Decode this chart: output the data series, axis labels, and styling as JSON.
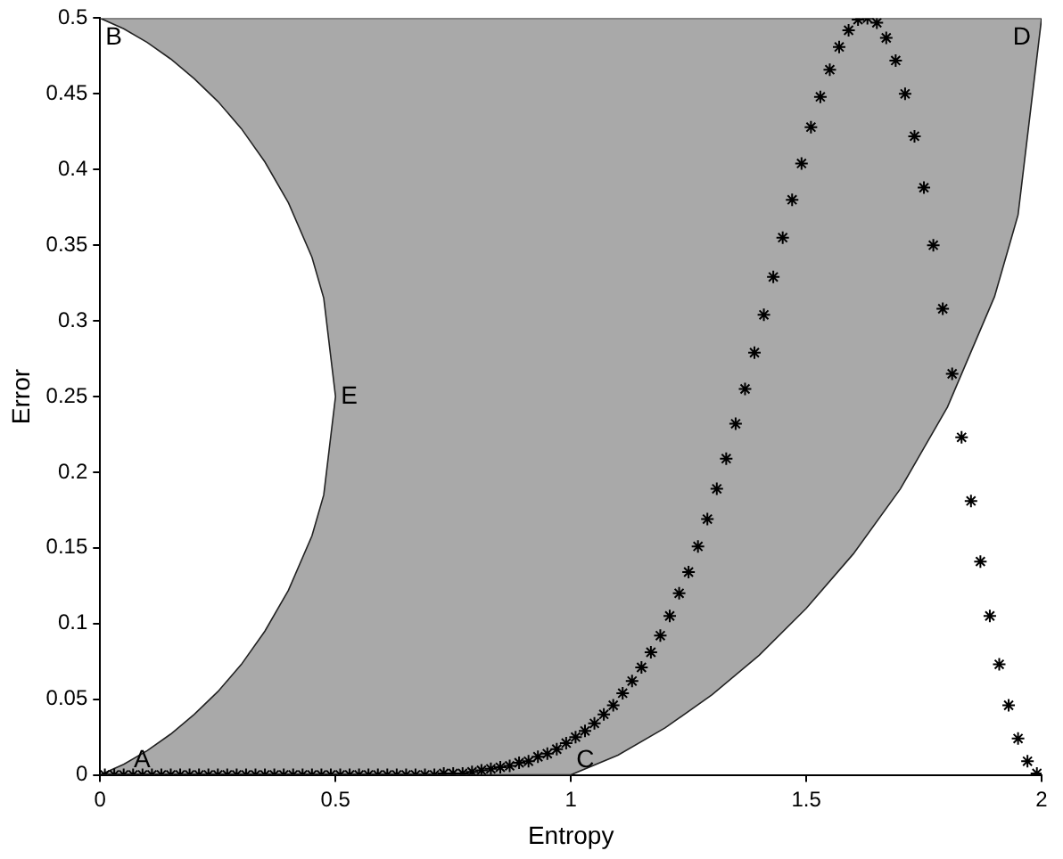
{
  "chart_data": {
    "type": "scatter",
    "xlabel": "Entropy",
    "ylabel": "Error",
    "xlim": [
      0,
      2
    ],
    "xticks": [
      0,
      0.5,
      1,
      1.5,
      2
    ],
    "ylim": [
      0,
      0.5
    ],
    "yticks": [
      0,
      0.05,
      0.1,
      0.15,
      0.2,
      0.25,
      0.3,
      0.35,
      0.4,
      0.45,
      0.5
    ],
    "grid": false,
    "legend": false,
    "series": [
      {
        "type": "area",
        "marker": "none",
        "color": "#a9a9a9",
        "x": [
          0,
          0.05,
          0.1,
          0.15,
          0.2,
          0.25,
          0.3,
          0.35,
          0.4,
          0.45,
          0.475,
          0.5,
          0.475,
          0.45,
          0.4,
          0.35,
          0.3,
          0.25,
          0.2,
          0.15,
          0.1,
          0.05,
          0,
          2,
          1.95,
          1.9,
          1.8,
          1.7,
          1.6,
          1.5,
          1.4,
          1.3,
          1.2,
          1.1,
          1,
          0
        ],
        "values": [
          0,
          0.007,
          0.016,
          0.027,
          0.04,
          0.055,
          0.073,
          0.095,
          0.122,
          0.158,
          0.185,
          0.25,
          0.315,
          0.342,
          0.378,
          0.405,
          0.427,
          0.445,
          0.46,
          0.473,
          0.484,
          0.493,
          0.5,
          0.5,
          0.37,
          0.316,
          0.243,
          0.189,
          0.146,
          0.11,
          0.079,
          0.053,
          0.031,
          0.013,
          0,
          0
        ]
      },
      {
        "type": "scatter",
        "marker": "cross",
        "color": "#000000",
        "x": [
          0.01,
          0.03,
          0.05,
          0.07,
          0.09,
          0.11,
          0.13,
          0.15,
          0.17,
          0.19,
          0.21,
          0.23,
          0.25,
          0.27,
          0.29,
          0.31,
          0.33,
          0.35,
          0.37,
          0.39,
          0.41,
          0.43,
          0.45,
          0.47,
          0.49,
          0.51,
          0.53,
          0.55,
          0.57,
          0.59,
          0.61,
          0.63,
          0.65,
          0.67,
          0.69,
          0.71,
          0.73,
          0.75,
          0.77,
          0.79,
          0.81,
          0.83,
          0.85,
          0.87,
          0.89,
          0.91,
          0.93,
          0.95,
          0.97,
          0.99,
          1.01,
          1.03,
          1.05,
          1.07,
          1.09,
          1.11,
          1.13,
          1.15,
          1.17,
          1.19,
          1.21,
          1.23,
          1.25,
          1.27,
          1.29,
          1.31,
          1.33,
          1.35,
          1.37,
          1.39,
          1.41,
          1.43,
          1.45,
          1.47,
          1.49,
          1.51,
          1.53,
          1.55,
          1.57,
          1.59,
          1.61,
          1.63,
          1.65,
          1.67,
          1.69,
          1.71,
          1.73,
          1.75,
          1.77,
          1.79,
          1.81,
          1.83,
          1.85,
          1.87,
          1.89,
          1.91,
          1.93,
          1.95,
          1.97,
          1.99
        ],
        "values": [
          0,
          0,
          0,
          0,
          0,
          0,
          0,
          0,
          0,
          0,
          0,
          0,
          0,
          0,
          0,
          0,
          0,
          0,
          0,
          0,
          0,
          0,
          0,
          0,
          0,
          0,
          0,
          0,
          0,
          0,
          0,
          0,
          0,
          0,
          0,
          0,
          0.001,
          0.001,
          0.001,
          0.002,
          0.003,
          0.004,
          0.005,
          0.006,
          0.008,
          0.009,
          0.012,
          0.014,
          0.017,
          0.021,
          0.025,
          0.029,
          0.034,
          0.04,
          0.046,
          0.054,
          0.062,
          0.071,
          0.081,
          0.092,
          0.105,
          0.12,
          0.134,
          0.151,
          0.169,
          0.189,
          0.209,
          0.232,
          0.255,
          0.279,
          0.304,
          0.329,
          0.355,
          0.38,
          0.404,
          0.428,
          0.448,
          0.466,
          0.481,
          0.492,
          0.499,
          0.5,
          0.497,
          0.487,
          0.472,
          0.45,
          0.422,
          0.388,
          0.35,
          0.308,
          0.265,
          0.223,
          0.181,
          0.141,
          0.105,
          0.073,
          0.046,
          0.024,
          0.009,
          0.001
        ]
      }
    ],
    "annotations": [
      {
        "text": "A",
        "x": 0.06,
        "y": 0
      },
      {
        "text": "B",
        "x": 0,
        "y": 0.5
      },
      {
        "text": "C",
        "x": 1,
        "y": 0
      },
      {
        "text": "D",
        "x": 2,
        "y": 0.5
      },
      {
        "text": "E",
        "x": 0.5,
        "y": 0.25
      }
    ]
  }
}
